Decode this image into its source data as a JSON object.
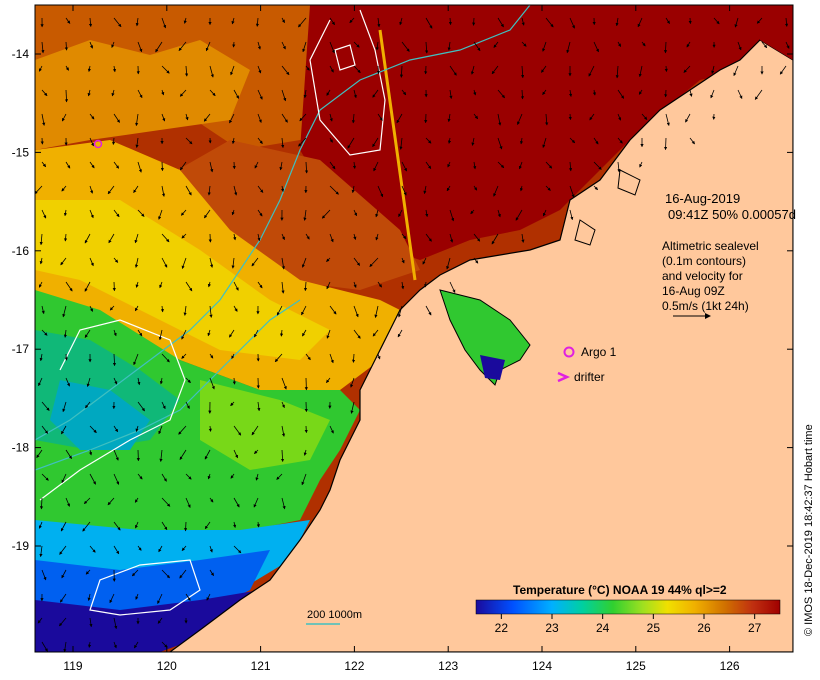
{
  "map": {
    "info": {
      "date": "16-Aug-2019",
      "time_line": "09:41Z  50% 0.00057d",
      "altimetric_lines": [
        "Altimetric sealevel",
        "(0.1m contours)",
        "and velocity for",
        "16-Aug 09Z",
        "0.5m/s (1kt 24h)"
      ]
    },
    "legend_markers": {
      "argo_label": "Argo 1",
      "drifter_label": "drifter",
      "argo_color": "#e020e0",
      "drifter_color": "#e020e0"
    },
    "depth_legend": {
      "label": "200  1000m",
      "color": "#40c0c0"
    },
    "colorbar": {
      "title": "Temperature (°C) NOAA 19 44% ql>=2",
      "ticks": [
        "22",
        "23",
        "24",
        "25",
        "26",
        "27"
      ],
      "range": [
        21.5,
        27.5
      ],
      "colors": [
        "#1a0a9c",
        "#0050ff",
        "#00b0ff",
        "#00d0a0",
        "#30d030",
        "#a0e020",
        "#f0e000",
        "#f0b000",
        "#d07000",
        "#c03010",
        "#a00000"
      ]
    },
    "axes": {
      "lon_ticks": [
        "119",
        "120",
        "121",
        "122",
        "123",
        "124",
        "125",
        "126"
      ],
      "lat_ticks": [
        "-14",
        "-15",
        "-16",
        "-17",
        "-18",
        "-19"
      ]
    },
    "credit": "© IMOS 18-Dec-2019 18:42:37 Hobart time",
    "colors": {
      "land": "#ffc89c",
      "coast": "#000000",
      "isobath": "#40c0c0",
      "contour": "#ffffff"
    }
  }
}
